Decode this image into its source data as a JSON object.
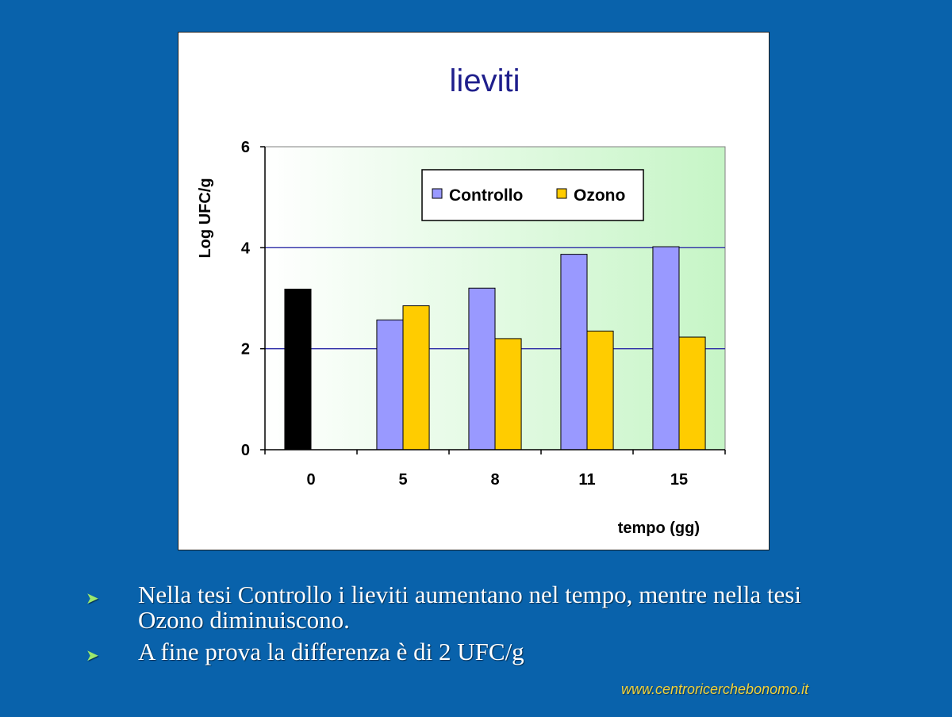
{
  "colors": {
    "background": "#0962ab",
    "controllo": "#9999ff",
    "ozono": "#ffcc00",
    "tempo_zero": "#000000",
    "gridline": "#2b2ba6",
    "title": "#1f1f8c",
    "bullet_arrow": "#9be86d",
    "website": "#f2d23a"
  },
  "chart_data": {
    "type": "bar",
    "title": "lieviti",
    "xlabel": "tempo (gg)",
    "ylabel": "Log UFC/g",
    "categories": [
      "0",
      "5",
      "8",
      "11",
      "15"
    ],
    "yticks": [
      "0",
      "2",
      "4",
      "6"
    ],
    "ylim": [
      0,
      6
    ],
    "grid": true,
    "legend_position": "top-center",
    "single_values": [
      {
        "category": "0",
        "value": 3.18
      }
    ],
    "series": [
      {
        "name": "Controllo",
        "values": [
          null,
          2.57,
          3.2,
          3.87,
          4.02
        ]
      },
      {
        "name": "Ozono",
        "values": [
          null,
          2.85,
          2.2,
          2.35,
          2.23
        ]
      }
    ]
  },
  "bullets": [
    "Nella tesi Controllo i lieviti aumentano nel tempo, mentre nella tesi Ozono diminuiscono.",
    "A fine prova la differenza è di 2 UFC/g"
  ],
  "bullet_icon": "arrow-bullet-icon",
  "website": "www.centroricerchebonomo.it"
}
